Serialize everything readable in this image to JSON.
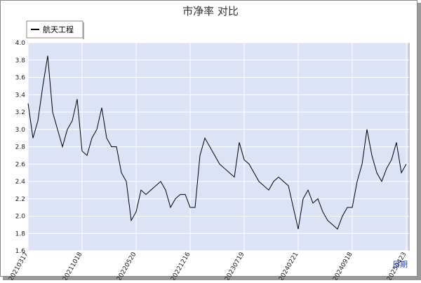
{
  "chart_data": {
    "type": "line",
    "title": "市净率  对比",
    "xlabel": "日期",
    "categories": [
      "20210317",
      null,
      null,
      null,
      null,
      null,
      null,
      null,
      null,
      null,
      null,
      "20211018",
      null,
      null,
      null,
      null,
      null,
      null,
      null,
      null,
      null,
      null,
      "20220520",
      null,
      null,
      null,
      null,
      null,
      null,
      null,
      null,
      null,
      null,
      "20221216",
      null,
      null,
      null,
      null,
      null,
      null,
      null,
      null,
      null,
      null,
      "20230719",
      null,
      null,
      null,
      null,
      null,
      null,
      null,
      null,
      null,
      null,
      "20240221",
      null,
      null,
      null,
      null,
      null,
      null,
      null,
      null,
      null,
      null,
      "20240918",
      null,
      null,
      null,
      null,
      null,
      null,
      null,
      null,
      null,
      null,
      "20250423"
    ],
    "series": [
      {
        "name": "航天工程",
        "color": "#000000",
        "values": [
          3.3,
          2.9,
          3.1,
          3.5,
          3.85,
          3.2,
          3.0,
          2.8,
          3.0,
          3.1,
          3.35,
          2.75,
          2.7,
          2.9,
          3.0,
          3.25,
          2.9,
          2.8,
          2.8,
          2.5,
          2.4,
          1.95,
          2.05,
          2.3,
          2.25,
          2.3,
          2.35,
          2.4,
          2.3,
          2.1,
          2.2,
          2.25,
          2.25,
          2.1,
          2.1,
          2.7,
          2.9,
          2.8,
          2.7,
          2.6,
          2.55,
          2.5,
          2.45,
          2.85,
          2.65,
          2.6,
          2.5,
          2.4,
          2.35,
          2.3,
          2.4,
          2.45,
          2.4,
          2.35,
          2.1,
          1.85,
          2.2,
          2.3,
          2.15,
          2.2,
          2.05,
          1.95,
          1.9,
          1.85,
          2.0,
          2.1,
          2.1,
          2.4,
          2.6,
          3.0,
          2.7,
          2.5,
          2.4,
          2.55,
          2.65,
          2.85,
          2.5,
          2.6
        ]
      }
    ],
    "ylim": [
      1.6,
      4.0
    ],
    "yticks": [
      {
        "value": 1.6,
        "label": "1.6"
      },
      1.8,
      {
        "value": 2,
        "label": "2.0"
      },
      2.2,
      2.4,
      2.6,
      2.8,
      {
        "value": 3,
        "label": "3.0"
      },
      3.2,
      3.4,
      3.6,
      3.8,
      {
        "value": 4,
        "label": "4.0"
      }
    ],
    "grid": true,
    "legend": "top-left",
    "background": "#dde3f7"
  }
}
